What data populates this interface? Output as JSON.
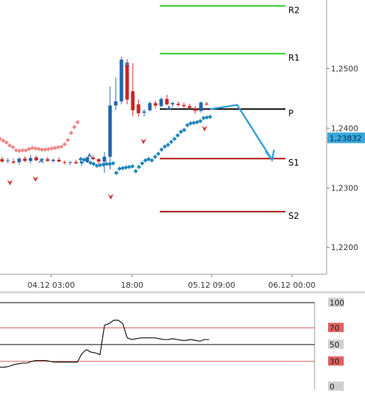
{
  "chart_data": {
    "type": "candlestick",
    "main_panel": {
      "y_axis": {
        "range": [
          1.2155,
          1.2615
        ],
        "ticks": [
          "1,2500",
          "1,2400",
          "1,2300",
          "1,2200"
        ],
        "tick_values": [
          1.25,
          1.24,
          1.23,
          1.22
        ],
        "position": "right"
      },
      "x_axis": {
        "labels": [
          "04.12 03:00",
          "18:00",
          "05.12 09:00",
          "06.12 00:00"
        ]
      },
      "current_price": {
        "label": "1,23832",
        "value": 1.23832,
        "color": "#3aa8dc"
      },
      "pivot_levels": [
        {
          "label": "R2",
          "value": 1.2605,
          "color": "#22cc22"
        },
        {
          "label": "R1",
          "value": 1.2525,
          "color": "#22cc22"
        },
        {
          "label": "P",
          "value": 1.2432,
          "color": "#000000"
        },
        {
          "label": "S1",
          "value": 1.2349,
          "color": "#aa1111"
        },
        {
          "label": "S2",
          "value": 1.226,
          "color": "#aa1111"
        }
      ],
      "candles": [
        {
          "o": 1.2348,
          "h": 1.2352,
          "l": 1.2342,
          "c": 1.2344
        },
        {
          "o": 1.2345,
          "h": 1.235,
          "l": 1.2341,
          "c": 1.2346
        },
        {
          "o": 1.2344,
          "h": 1.2349,
          "l": 1.234,
          "c": 1.2342
        },
        {
          "o": 1.2343,
          "h": 1.2351,
          "l": 1.2339,
          "c": 1.2349
        },
        {
          "o": 1.2349,
          "h": 1.2353,
          "l": 1.2343,
          "c": 1.2345
        },
        {
          "o": 1.2345,
          "h": 1.2355,
          "l": 1.2341,
          "c": 1.235
        },
        {
          "o": 1.2351,
          "h": 1.2354,
          "l": 1.2345,
          "c": 1.2346
        },
        {
          "o": 1.2346,
          "h": 1.235,
          "l": 1.2342,
          "c": 1.2348
        },
        {
          "o": 1.2348,
          "h": 1.2352,
          "l": 1.2344,
          "c": 1.2345
        },
        {
          "o": 1.2345,
          "h": 1.2349,
          "l": 1.2342,
          "c": 1.2347
        },
        {
          "o": 1.2347,
          "h": 1.2351,
          "l": 1.2343,
          "c": 1.2344
        },
        {
          "o": 1.2343,
          "h": 1.2346,
          "l": 1.2339,
          "c": 1.2342
        },
        {
          "o": 1.2342,
          "h": 1.2345,
          "l": 1.2338,
          "c": 1.2343
        },
        {
          "o": 1.2343,
          "h": 1.2347,
          "l": 1.234,
          "c": 1.2341
        },
        {
          "o": 1.2341,
          "h": 1.2345,
          "l": 1.2337,
          "c": 1.2344
        },
        {
          "o": 1.2345,
          "h": 1.2352,
          "l": 1.2343,
          "c": 1.2351
        },
        {
          "o": 1.2351,
          "h": 1.2355,
          "l": 1.2346,
          "c": 1.2348
        },
        {
          "o": 1.2348,
          "h": 1.235,
          "l": 1.234,
          "c": 1.2344
        },
        {
          "o": 1.2344,
          "h": 1.236,
          "l": 1.2325,
          "c": 1.2352
        },
        {
          "o": 1.2352,
          "h": 1.247,
          "l": 1.233,
          "c": 1.2438
        },
        {
          "o": 1.2438,
          "h": 1.2485,
          "l": 1.243,
          "c": 1.2445
        },
        {
          "o": 1.2445,
          "h": 1.252,
          "l": 1.244,
          "c": 1.2515
        },
        {
          "o": 1.251,
          "h": 1.2516,
          "l": 1.244,
          "c": 1.2448
        },
        {
          "o": 1.2462,
          "h": 1.2509,
          "l": 1.242,
          "c": 1.243
        },
        {
          "o": 1.244,
          "h": 1.2448,
          "l": 1.2419,
          "c": 1.2425
        },
        {
          "o": 1.2426,
          "h": 1.2432,
          "l": 1.242,
          "c": 1.2428
        },
        {
          "o": 1.243,
          "h": 1.2445,
          "l": 1.2428,
          "c": 1.2442
        },
        {
          "o": 1.2442,
          "h": 1.2446,
          "l": 1.2433,
          "c": 1.2438
        },
        {
          "o": 1.2437,
          "h": 1.2452,
          "l": 1.2435,
          "c": 1.2449
        },
        {
          "o": 1.2449,
          "h": 1.2456,
          "l": 1.2438,
          "c": 1.244
        },
        {
          "o": 1.244,
          "h": 1.2445,
          "l": 1.2435,
          "c": 1.2442
        },
        {
          "o": 1.2441,
          "h": 1.2445,
          "l": 1.2436,
          "c": 1.2439
        },
        {
          "o": 1.2439,
          "h": 1.2443,
          "l": 1.2434,
          "c": 1.2437
        },
        {
          "o": 1.2437,
          "h": 1.2441,
          "l": 1.2432,
          "c": 1.2434
        },
        {
          "o": 1.2433,
          "h": 1.2437,
          "l": 1.2424,
          "c": 1.2429
        },
        {
          "o": 1.2429,
          "h": 1.2445,
          "l": 1.2426,
          "c": 1.2443
        },
        {
          "o": 1.2441,
          "h": 1.2444,
          "l": 1.2438,
          "c": 1.244
        }
      ],
      "sar_dots": [
        1.2382,
        1.2379,
        1.2376,
        1.2371,
        1.2368,
        1.2363,
        1.2362,
        1.2363,
        1.2363,
        1.2365,
        1.2367,
        1.2366,
        1.2365,
        1.2364,
        1.2364,
        1.2365,
        1.2366,
        1.2367,
        1.2368,
        1.2369,
        1.2373,
        1.238,
        1.2392,
        1.2402,
        1.241,
        1.2348,
        1.2347,
        1.2345,
        1.2342,
        1.234,
        1.2337,
        1.2338,
        1.2339,
        1.234,
        1.234,
        1.2341,
        1.2325,
        1.2332,
        1.2333,
        1.2334,
        1.2335,
        1.2336,
        1.2328,
        1.2335,
        1.2341,
        1.2346,
        1.2348,
        1.2346,
        1.2352,
        1.2357,
        1.2364,
        1.2369,
        1.2372,
        1.2377,
        1.2382,
        1.2388,
        1.2394,
        1.2397,
        1.2405,
        1.2408,
        1.2409,
        1.241,
        1.2412,
        1.2417,
        1.2418,
        1.2419
      ],
      "projection": [
        [
          1.2432,
          0
        ],
        [
          1.2439,
          0
        ],
        [
          1.2347,
          0
        ]
      ]
    },
    "sub_panel": {
      "y_axis": {
        "range": [
          0,
          100
        ],
        "ticks": [
          "100",
          "70",
          "50",
          "30",
          "0"
        ],
        "tick_values": [
          100,
          70,
          50,
          30,
          0
        ]
      },
      "levels": [
        {
          "value": 100,
          "color": "#000000"
        },
        {
          "value": 70,
          "color": "#cc3333"
        },
        {
          "value": 50,
          "color": "#000000"
        },
        {
          "value": 30,
          "color": "#cc3333"
        }
      ],
      "line": [
        23,
        23,
        24,
        26,
        27,
        28,
        28,
        30,
        31,
        31,
        31,
        30,
        29,
        29,
        29,
        29,
        29,
        29,
        39,
        44,
        41,
        40,
        38,
        73,
        75,
        79,
        79,
        75,
        58,
        56,
        57,
        58,
        58,
        58,
        58,
        57,
        56,
        56,
        57,
        56,
        55,
        55,
        56,
        55,
        54,
        56,
        56
      ]
    }
  }
}
